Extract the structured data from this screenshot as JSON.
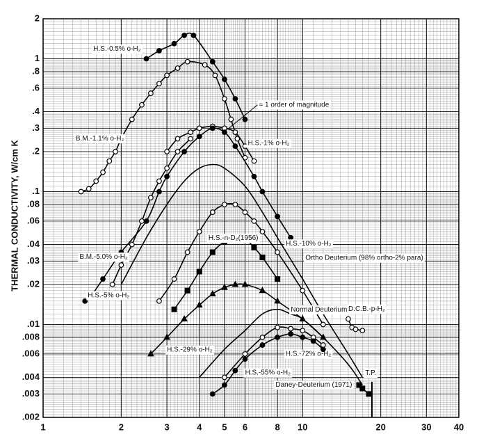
{
  "chart_data": {
    "type": "line",
    "log_x": true,
    "log_y": true,
    "grid": true,
    "y_label": "THERMAL CONDUCTIVITY, W/cm K",
    "xlim": [
      1,
      40
    ],
    "xticks": [
      1,
      2,
      3,
      4,
      5,
      6,
      8,
      10,
      20,
      30,
      40
    ],
    "ylim": [
      0.002,
      2
    ],
    "yticks": [
      {
        "value": 0.002,
        "label": ".002"
      },
      {
        "value": 0.003,
        "label": ".003"
      },
      {
        "value": 0.004,
        "label": ".004"
      },
      {
        "value": 0.006,
        "label": ".006"
      },
      {
        "value": 0.008,
        "label": ".008"
      },
      {
        "value": 0.01,
        "label": ".01"
      },
      {
        "value": 0.02,
        "label": ".02"
      },
      {
        "value": 0.03,
        "label": ".03"
      },
      {
        "value": 0.04,
        "label": ".04"
      },
      {
        "value": 0.06,
        "label": ".06"
      },
      {
        "value": 0.08,
        "label": ".08"
      },
      {
        "value": 0.1,
        "label": ".1"
      },
      {
        "value": 0.2,
        "label": ".2"
      },
      {
        "value": 0.3,
        "label": ".3"
      },
      {
        "value": 0.4,
        "label": ".4"
      },
      {
        "value": 0.6,
        "label": ".6"
      },
      {
        "value": 0.8,
        "label": ".8"
      },
      1,
      2
    ],
    "annotations": [
      "≈ 1 order of magnitude",
      "T.P."
    ],
    "series": [
      {
        "name": "H.S.-0.5% o-H₂",
        "color": "#000",
        "marker": "filled-circle",
        "x": [
          2.5,
          2.8,
          3.2,
          3.5,
          3.8,
          4.5,
          5.0,
          5.5,
          6.0
        ],
        "values": [
          1.0,
          1.15,
          1.3,
          1.5,
          1.5,
          0.95,
          0.7,
          0.5,
          0.35
        ]
      },
      {
        "name": "B.M.-1.1% o-H₂",
        "color": "#000",
        "marker": "open-circle",
        "x": [
          1.4,
          1.5,
          1.6,
          1.7,
          1.8,
          1.9,
          2.0,
          2.2,
          2.4,
          2.6,
          2.8,
          3.0,
          3.3,
          3.6,
          4.2,
          4.6,
          5.0,
          5.3,
          5.6,
          6.0
        ],
        "values": [
          0.1,
          0.105,
          0.12,
          0.14,
          0.17,
          0.2,
          0.25,
          0.35,
          0.45,
          0.55,
          0.65,
          0.75,
          0.85,
          0.95,
          0.9,
          0.75,
          0.5,
          0.35,
          0.25,
          0.18
        ]
      },
      {
        "name": "H.S.-1% o-H₂",
        "color": "#000",
        "marker": "open-circle",
        "x": [
          3.0,
          3.3,
          3.7,
          4.0,
          4.5,
          5.0,
          5.5,
          6.0,
          6.5
        ],
        "values": [
          0.2,
          0.25,
          0.28,
          0.3,
          0.31,
          0.3,
          0.28,
          0.22,
          0.17
        ]
      },
      {
        "name": "H.S.-5% o-H₂",
        "color": "#000",
        "marker": "filled-circle",
        "x": [
          1.45,
          1.55,
          1.7,
          2.0,
          2.5,
          2.8,
          3.0,
          3.5,
          4.0,
          4.5,
          5.0,
          5.5,
          6.5,
          7.0,
          8.0,
          9.0
        ],
        "values": [
          0.015,
          0.017,
          0.022,
          0.035,
          0.06,
          0.1,
          0.13,
          0.2,
          0.26,
          0.3,
          0.28,
          0.22,
          0.13,
          0.1,
          0.065,
          0.045
        ]
      },
      {
        "name": "B.M.-5.0% o-H₂",
        "color": "#000",
        "marker": "open-circle",
        "x": [
          1.85,
          2.0,
          2.2,
          2.4,
          2.6,
          2.8,
          3.0,
          3.3,
          3.7
        ],
        "values": [
          0.02,
          0.028,
          0.04,
          0.06,
          0.09,
          0.12,
          0.15,
          0.2,
          0.25
        ]
      },
      {
        "name": "Ortho Deuterium (98% ortho-2% para)",
        "color": "#000",
        "marker": "none",
        "x": [
          2.0,
          2.5,
          3.0,
          3.5,
          4.0,
          4.5,
          5.0,
          6.0,
          7.0,
          8.0,
          10.0,
          12.0,
          15.0,
          17.0
        ],
        "values": [
          0.02,
          0.045,
          0.08,
          0.12,
          0.15,
          0.16,
          0.15,
          0.11,
          0.07,
          0.045,
          0.022,
          0.012,
          0.006,
          0.004
        ]
      },
      {
        "name": "H.S.-10% o-H₂",
        "color": "#000",
        "marker": "open-circle",
        "x": [
          2.8,
          3.2,
          3.6,
          4.0,
          4.5,
          5.0,
          5.5,
          6.0,
          6.5,
          7.0,
          8.0,
          10.0,
          12.0
        ],
        "values": [
          0.015,
          0.022,
          0.035,
          0.05,
          0.07,
          0.08,
          0.08,
          0.07,
          0.06,
          0.05,
          0.035,
          0.018,
          0.01
        ]
      },
      {
        "name": "H.S.-n-D₂(1956)",
        "color": "#000",
        "marker": "filled-square",
        "x": [
          3.2,
          3.6,
          4.0,
          4.5,
          5.0,
          5.5,
          6.0,
          6.5,
          7.0,
          8.0
        ],
        "values": [
          0.013,
          0.018,
          0.025,
          0.035,
          0.042,
          0.045,
          0.044,
          0.038,
          0.032,
          0.022
        ]
      },
      {
        "name": "H.S.-29% o-H₂",
        "color": "#000",
        "marker": "filled-triangle",
        "x": [
          2.6,
          3.0,
          3.5,
          4.0,
          4.5,
          5.0,
          5.5,
          6.0,
          7.0,
          8.0,
          10.0,
          12.0
        ],
        "values": [
          0.006,
          0.008,
          0.011,
          0.014,
          0.017,
          0.019,
          0.02,
          0.02,
          0.018,
          0.015,
          0.011,
          0.008
        ]
      },
      {
        "name": "Normal Deuterium",
        "color": "#000",
        "marker": "none",
        "x": [
          4.0,
          5.0,
          6.0,
          7.0,
          8.0,
          9.0,
          10.0,
          12.0,
          15.0,
          17.0
        ],
        "values": [
          0.004,
          0.0065,
          0.009,
          0.012,
          0.013,
          0.012,
          0.011,
          0.008,
          0.005,
          0.0035
        ]
      },
      {
        "name": "H.S.-72% o-H₂",
        "color": "#000",
        "marker": "open-circle",
        "x": [
          5.0,
          6.0,
          7.0,
          8.0,
          9.0,
          10.0,
          11.0,
          12.0
        ],
        "values": [
          0.004,
          0.006,
          0.008,
          0.0095,
          0.0093,
          0.009,
          0.008,
          0.007
        ]
      },
      {
        "name": "H.S.-55% o-H₂",
        "color": "#000",
        "marker": "filled-circle",
        "x": [
          4.5,
          5.0,
          5.5,
          6.0,
          7.0,
          8.0,
          9.0,
          10.0,
          11.0,
          12.0
        ],
        "values": [
          0.003,
          0.0035,
          0.0045,
          0.0055,
          0.007,
          0.008,
          0.0085,
          0.008,
          0.0075,
          0.0065
        ]
      },
      {
        "name": "D.C.B.-p-H₂",
        "color": "#000",
        "marker": "open-circle",
        "x": [
          15.0,
          15.5,
          16.0,
          17.0
        ],
        "values": [
          0.011,
          0.0095,
          0.0092,
          0.009
        ]
      },
      {
        "name": "Daney-Deuterium (1971)",
        "color": "#000",
        "marker": "filled-square",
        "x": [
          16.5,
          17.0,
          18.0
        ],
        "values": [
          0.0035,
          0.0033,
          0.003
        ]
      }
    ]
  }
}
